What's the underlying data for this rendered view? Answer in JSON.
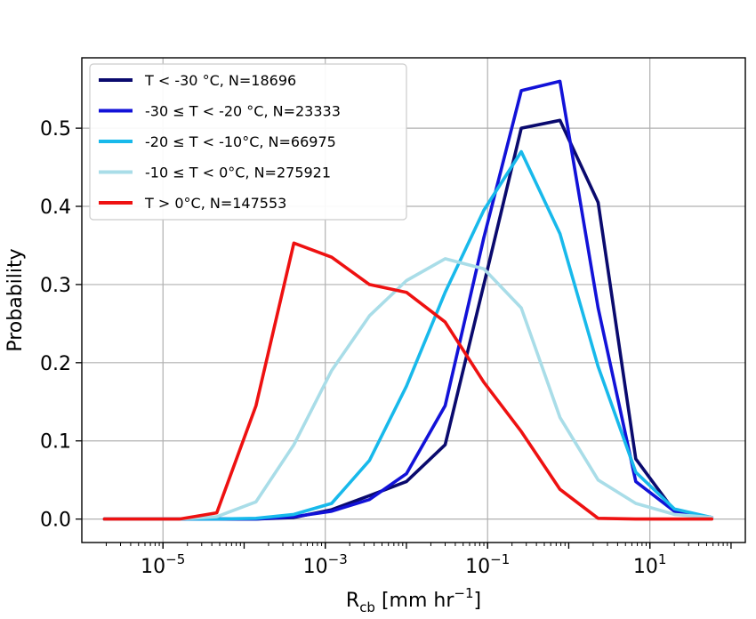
{
  "chart_data": {
    "type": "line",
    "xlabel": {
      "base": "R",
      "sub": "cb",
      "units": " [mm hr",
      "sup": "−1",
      "close": "]"
    },
    "ylabel": "Probability",
    "xscale": "log",
    "xlim": [
      1e-06,
      150
    ],
    "ylim": [
      -0.03,
      0.59
    ],
    "grid": true,
    "legend_position": "upper-left",
    "x_ticks": [
      {
        "value": 1e-05,
        "base": "10",
        "exp": "−5"
      },
      {
        "value": 0.001,
        "base": "10",
        "exp": "−3"
      },
      {
        "value": 0.1,
        "base": "10",
        "exp": "−1"
      },
      {
        "value": 10,
        "base": "10",
        "exp": "1"
      }
    ],
    "y_ticks": [
      {
        "value": 0.0,
        "label": "0.0"
      },
      {
        "value": 0.1,
        "label": "0.1"
      },
      {
        "value": 0.2,
        "label": "0.2"
      },
      {
        "value": 0.3,
        "label": "0.3"
      },
      {
        "value": 0.4,
        "label": "0.4"
      },
      {
        "value": 0.5,
        "label": "0.5"
      }
    ],
    "x": [
      1.9e-06,
      5.4e-06,
      1.6e-05,
      4.6e-05,
      0.00014,
      0.00041,
      0.0012,
      0.0035,
      0.01,
      0.03,
      0.09,
      0.26,
      0.78,
      2.3,
      6.7,
      20,
      58
    ],
    "series": [
      {
        "name": "T < -30 °C, N=18696",
        "color": "#0a0a6e",
        "values": [
          0,
          0,
          0,
          0,
          0,
          0.002,
          0.012,
          0.03,
          0.048,
          0.095,
          0.3,
          0.5,
          0.51,
          0.405,
          0.077,
          0.01,
          0.002
        ]
      },
      {
        "name": "-30 ≤ T < -20 °C, N=23333",
        "color": "#1212d8",
        "values": [
          0,
          0,
          0,
          0,
          0,
          0.003,
          0.01,
          0.025,
          0.058,
          0.145,
          0.36,
          0.548,
          0.56,
          0.27,
          0.048,
          0.01,
          0.002
        ]
      },
      {
        "name": "-20 ≤ T < -10°C, N=66975",
        "color": "#18b9eb",
        "values": [
          0,
          0,
          0,
          0,
          0.001,
          0.006,
          0.02,
          0.075,
          0.17,
          0.29,
          0.395,
          0.47,
          0.365,
          0.195,
          0.06,
          0.013,
          0.002
        ]
      },
      {
        "name": "-10 ≤ T < 0°C, N=275921",
        "color": "#a9dde8",
        "values": [
          0,
          0,
          0,
          0.003,
          0.022,
          0.095,
          0.19,
          0.26,
          0.305,
          0.333,
          0.32,
          0.27,
          0.13,
          0.05,
          0.02,
          0.006,
          0.002
        ]
      },
      {
        "name": "T > 0°C, N=147553",
        "color": "#ee1111",
        "values": [
          0,
          0,
          0,
          0.008,
          0.145,
          0.353,
          0.335,
          0.3,
          0.29,
          0.252,
          0.175,
          0.112,
          0.038,
          0.001,
          0,
          0,
          0
        ]
      }
    ]
  }
}
